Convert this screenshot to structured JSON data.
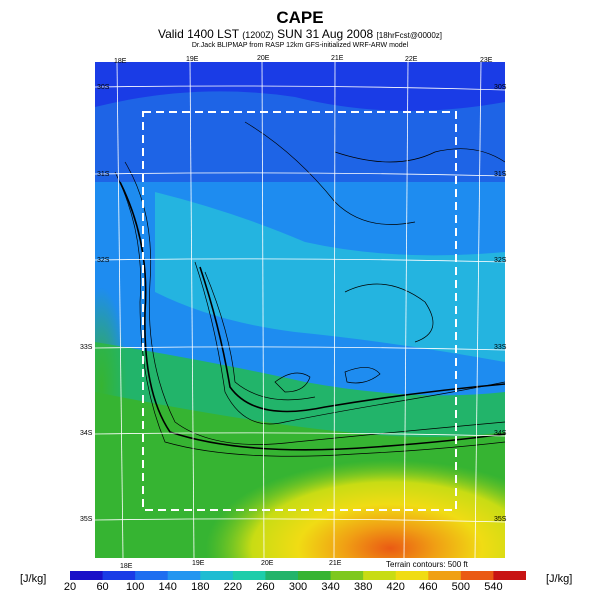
{
  "header": {
    "title": "CAPE",
    "subtitle_main": "Valid 1400 LST",
    "subtitle_utc": "(1200Z)",
    "subtitle_date": "SUN 31 Aug 2008",
    "subtitle_fcst": "[18hrFcst@0000z]",
    "credit": "Dr.Jack BLIPMAP from RASP 12km GFS-initialized WRF-ARW model"
  },
  "map": {
    "top_lon_labels": [
      "18E",
      "19E",
      "20E",
      "21E",
      "22E",
      "23E"
    ],
    "bottom_lon_labels": [
      "18E",
      "19E",
      "20E",
      "21E"
    ],
    "right_lat_labels": [
      "30S",
      "31S",
      "32S",
      "33S",
      "34S",
      "35S"
    ],
    "left_lat_labels": [
      "30S",
      "31S",
      "32S",
      "33S",
      "34S",
      "35S"
    ],
    "terrain_note": "Terrain contours: 500 ft"
  },
  "colorbar": {
    "unit_left": "[J/kg]",
    "unit_right": "[J/kg]",
    "ticks": [
      "20",
      "60",
      "100",
      "140",
      "180",
      "220",
      "260",
      "300",
      "340",
      "380",
      "420",
      "460",
      "500",
      "540"
    ],
    "colors": [
      "#1a10c8",
      "#1a3ce6",
      "#1e6ef0",
      "#2496f0",
      "#1ebcd2",
      "#1ecdaa",
      "#22b46a",
      "#36b432",
      "#7ec81e",
      "#c8dc14",
      "#f0dc14",
      "#f0a014",
      "#ea5a14",
      "#c81414"
    ]
  }
}
